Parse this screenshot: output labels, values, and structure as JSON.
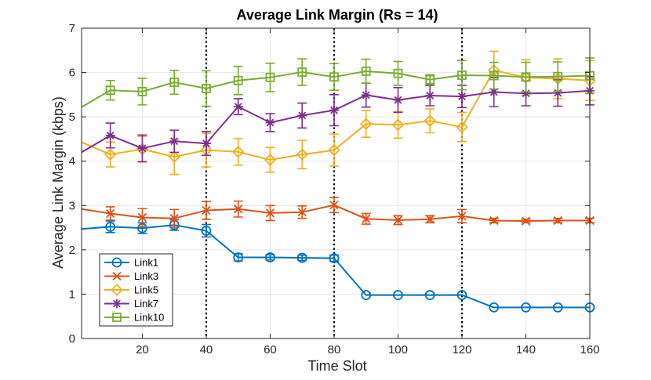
{
  "chart_data": {
    "type": "line",
    "title": "Average Link Margin (Rs = 14)",
    "xlabel": "Time Slot",
    "ylabel": "Average Link Margin (kbps)",
    "xlim": [
      1,
      160
    ],
    "ylim": [
      0,
      7
    ],
    "xticks": [
      20,
      40,
      60,
      80,
      100,
      120,
      140,
      160
    ],
    "yticks": [
      0,
      1,
      2,
      3,
      4,
      5,
      6,
      7
    ],
    "grid": true,
    "legend_position": "bottom-left",
    "vertical_markers": [
      40,
      80,
      120
    ],
    "series": [
      {
        "name": "Link1",
        "color": "#0072BD",
        "marker": "circle",
        "x": [
          1,
          10,
          20,
          30,
          40,
          50,
          60,
          70,
          80,
          90,
          100,
          110,
          120,
          130,
          140,
          150,
          160
        ],
        "y": [
          2.47,
          2.52,
          2.49,
          2.56,
          2.43,
          1.83,
          1.83,
          1.82,
          1.81,
          0.98,
          0.98,
          0.98,
          0.98,
          0.7,
          0.7,
          0.7,
          0.7
        ],
        "err": [
          0,
          0.13,
          0.12,
          0.12,
          0.14,
          0.08,
          0.06,
          0.06,
          0.07,
          0,
          0,
          0,
          0,
          0,
          0,
          0,
          0
        ]
      },
      {
        "name": "Link3",
        "color": "#D95319",
        "marker": "x",
        "x": [
          1,
          10,
          20,
          30,
          40,
          50,
          60,
          70,
          80,
          90,
          100,
          110,
          120,
          130,
          140,
          150,
          160
        ],
        "y": [
          2.92,
          2.82,
          2.73,
          2.71,
          2.89,
          2.92,
          2.83,
          2.85,
          3.01,
          2.7,
          2.67,
          2.69,
          2.76,
          2.66,
          2.65,
          2.66,
          2.66
        ],
        "err": [
          0,
          0.15,
          0.2,
          0.2,
          0.2,
          0.18,
          0.17,
          0.14,
          0.17,
          0.12,
          0.1,
          0.08,
          0.15,
          0.05,
          0.04,
          0.05,
          0.05
        ]
      },
      {
        "name": "Link5",
        "color": "#EDB120",
        "marker": "diamond",
        "x": [
          1,
          10,
          20,
          30,
          40,
          50,
          60,
          70,
          80,
          90,
          100,
          110,
          120,
          130,
          140,
          150,
          160
        ],
        "y": [
          4.43,
          4.15,
          4.27,
          4.1,
          4.25,
          4.21,
          4.03,
          4.15,
          4.25,
          4.84,
          4.82,
          4.91,
          4.77,
          6.05,
          5.89,
          5.86,
          5.82
        ],
        "err": [
          0,
          0.28,
          0.29,
          0.4,
          0.38,
          0.3,
          0.28,
          0.32,
          0.36,
          0.3,
          0.3,
          0.27,
          0.33,
          0.43,
          0.4,
          0.45,
          0.45
        ]
      },
      {
        "name": "Link7",
        "color": "#7E2F8E",
        "marker": "star",
        "x": [
          1,
          10,
          20,
          30,
          40,
          50,
          60,
          70,
          80,
          90,
          100,
          110,
          120,
          130,
          140,
          150,
          160
        ],
        "y": [
          4.2,
          4.58,
          4.29,
          4.45,
          4.4,
          5.23,
          4.87,
          5.03,
          5.15,
          5.49,
          5.38,
          5.48,
          5.46,
          5.56,
          5.53,
          5.54,
          5.59
        ],
        "err": [
          0,
          0.28,
          0.3,
          0.25,
          0.27,
          0.18,
          0.2,
          0.28,
          0.35,
          0.27,
          0.28,
          0.23,
          0.25,
          0.33,
          0.28,
          0.3,
          0.32
        ]
      },
      {
        "name": "Link10",
        "color": "#77AC30",
        "marker": "square",
        "x": [
          1,
          10,
          20,
          30,
          40,
          50,
          60,
          70,
          80,
          90,
          100,
          110,
          120,
          130,
          140,
          150,
          160
        ],
        "y": [
          5.22,
          5.6,
          5.57,
          5.78,
          5.64,
          5.82,
          5.89,
          6.01,
          5.9,
          6.03,
          5.98,
          5.84,
          5.94,
          5.93,
          5.9,
          5.91,
          5.93
        ],
        "err": [
          0,
          0.22,
          0.3,
          0.27,
          0.4,
          0.32,
          0.32,
          0.3,
          0.3,
          0.27,
          0.27,
          0.11,
          0.33,
          0.3,
          0.33,
          0.33,
          0.4
        ]
      }
    ]
  }
}
